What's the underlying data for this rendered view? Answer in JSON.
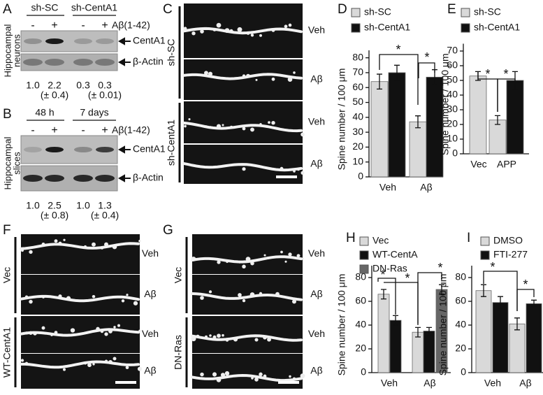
{
  "panel_a": {
    "label": "A",
    "groups": [
      "sh-SC",
      "sh-CentA1"
    ],
    "signs": [
      "-",
      "+",
      "-",
      "+"
    ],
    "treatment": "Aβ(1-42)",
    "side_label": [
      "Hippocampal",
      "neurons"
    ],
    "bands": [
      "CentA1",
      "β-Actin"
    ],
    "ratios": [
      "1.0",
      "2.2",
      "0.3",
      "0.3"
    ],
    "errors": [
      "(± 0.4)",
      "(± 0.01)"
    ]
  },
  "panel_b": {
    "label": "B",
    "groups": [
      "48 h",
      "7 days"
    ],
    "signs": [
      "-",
      "+",
      "-",
      "+"
    ],
    "treatment": "Aβ(1-42)",
    "side_label": [
      "Hippocampal",
      "slices"
    ],
    "bands": [
      "CentA1",
      "β-Actin"
    ],
    "ratios": [
      "1.0",
      "2.5",
      "1.0",
      "1.3"
    ],
    "errors": [
      "(± 0.8)",
      "(± 0.4)"
    ]
  },
  "panel_c": {
    "label": "C",
    "groups": [
      "sh-SC",
      "sh-CentA1"
    ],
    "conditions": [
      "Veh",
      "Aβ",
      "Veh",
      "Aβ"
    ]
  },
  "panel_f": {
    "label": "F",
    "groups": [
      "Vec",
      "WT-CentA1"
    ],
    "conditions": [
      "Veh",
      "Aβ",
      "Veh",
      "Aβ"
    ]
  },
  "panel_g": {
    "label": "G",
    "groups": [
      "Vec",
      "DN-Ras"
    ],
    "conditions": [
      "Veh",
      "Aβ",
      "Veh",
      "Aβ"
    ]
  },
  "chart_data": [
    {
      "type": "bar",
      "panel": "D",
      "ylabel": "Spine number / 100 μm",
      "categories": [
        "Veh",
        "Aβ"
      ],
      "series": [
        {
          "name": "sh-SC",
          "color": "#d9d9d9",
          "values": [
            64,
            37
          ],
          "errors": [
            5,
            4
          ]
        },
        {
          "name": "sh-CentA1",
          "color": "#111111",
          "values": [
            70,
            67
          ],
          "errors": [
            5,
            5
          ]
        }
      ],
      "ylim": [
        0,
        85
      ],
      "yticks": [
        0,
        10,
        20,
        30,
        40,
        50,
        60,
        70,
        80
      ],
      "annotations": [
        "*",
        "*"
      ]
    },
    {
      "type": "bar",
      "panel": "E",
      "ylabel": "Spine number / 100 μm",
      "categories": [
        "Vec",
        "APP"
      ],
      "series": [
        {
          "name": "sh-SC",
          "color": "#d9d9d9",
          "values": [
            53,
            23
          ],
          "errors": [
            3,
            3
          ]
        },
        {
          "name": "sh-CentA1",
          "color": "#111111",
          "values": [
            null,
            50
          ],
          "errors": [
            null,
            6
          ]
        }
      ],
      "ylim": [
        0,
        75
      ],
      "yticks": [
        0,
        10,
        20,
        30,
        40,
        50,
        60,
        70
      ],
      "annotations": [
        "*",
        "*"
      ]
    },
    {
      "type": "bar",
      "panel": "H",
      "ylabel": "Spine number / 100 μm",
      "categories": [
        "Veh",
        "Aβ"
      ],
      "series": [
        {
          "name": "Vec",
          "color": "#d9d9d9",
          "values": [
            66,
            34
          ],
          "errors": [
            4,
            4
          ]
        },
        {
          "name": "WT-CentA",
          "color": "#111111",
          "values": [
            44,
            35
          ],
          "errors": [
            4,
            3
          ]
        },
        {
          "name": "DN-Ras",
          "color": "#666666",
          "values": [
            null,
            70
          ],
          "errors": [
            null,
            4
          ]
        }
      ],
      "ylim": [
        0,
        90
      ],
      "yticks": [
        0,
        20,
        40,
        60,
        80
      ],
      "annotations": [
        "*",
        "*",
        "*"
      ]
    },
    {
      "type": "bar",
      "panel": "I",
      "ylabel": "Spine number / 100 μm",
      "categories": [
        "Veh",
        "Aβ"
      ],
      "series": [
        {
          "name": "DMSO",
          "color": "#d9d9d9",
          "values": [
            69,
            41
          ],
          "errors": [
            5,
            5
          ]
        },
        {
          "name": "FTI-277",
          "color": "#111111",
          "values": [
            59,
            58
          ],
          "errors": [
            5,
            3
          ]
        }
      ],
      "ylim": [
        0,
        90
      ],
      "yticks": [
        0,
        20,
        40,
        60,
        80
      ],
      "annotations": [
        "*",
        "*"
      ]
    }
  ]
}
